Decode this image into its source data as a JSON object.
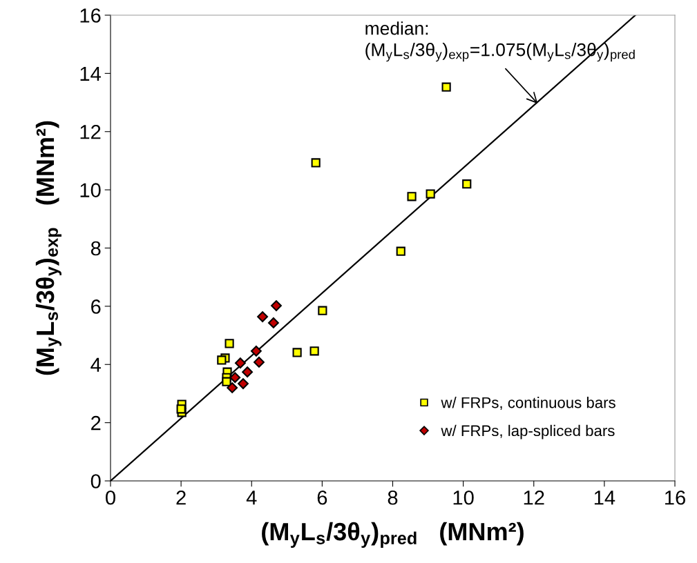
{
  "chart_data": {
    "type": "scatter",
    "xlabel": "(M$_{y}$L$_{s}$/3θ$_{y}$)$_{pred}$   (MNm²)",
    "ylabel": "(M$_{y}$L$_{s}$/3θ$_{y}$)$_{exp}$   (MNm²)",
    "xlim": [
      0,
      16
    ],
    "ylim": [
      0,
      16
    ],
    "xticks": [
      0,
      2,
      4,
      6,
      8,
      10,
      12,
      14,
      16
    ],
    "yticks": [
      0,
      2,
      4,
      6,
      8,
      10,
      12,
      14,
      16
    ],
    "grid": false,
    "legend": "bottom right",
    "series": [
      {
        "name": "w/ FRPs, continuous bars",
        "color": "#ffff00",
        "marker": "square",
        "x": [
          2.02,
          2.02,
          2.0,
          3.37,
          3.25,
          3.15,
          3.31,
          3.29,
          3.29,
          5.29,
          5.78,
          6.01,
          5.82,
          8.54,
          9.07,
          10.1,
          8.23,
          9.52
        ],
        "values": [
          2.63,
          2.35,
          2.47,
          4.72,
          4.22,
          4.15,
          3.74,
          3.55,
          3.41,
          4.41,
          4.46,
          5.85,
          10.93,
          9.77,
          9.86,
          10.2,
          7.89,
          13.53
        ]
      },
      {
        "name": "w/ FRPs, lap-spliced bars",
        "color": "#c00000",
        "marker": "diamond",
        "x": [
          4.7,
          4.31,
          4.62,
          4.13,
          4.21,
          3.68,
          3.88,
          3.53,
          3.76,
          3.45
        ],
        "values": [
          6.02,
          5.64,
          5.43,
          4.46,
          4.08,
          4.05,
          3.74,
          3.55,
          3.34,
          3.2
        ]
      },
      {
        "type": "line",
        "color": "#000000",
        "marker": "none",
        "line_style": "solid",
        "x": [
          0,
          14.88
        ],
        "values": [
          0,
          16
        ]
      }
    ],
    "annotations": [
      "median:",
      "(M$_{y}$L$_{s}$/3θ$_{y}$)$_{exp}$=1.075(M$_{y}$L$_{s}$/3θ$_{y}$)$_{pred}$"
    ]
  }
}
